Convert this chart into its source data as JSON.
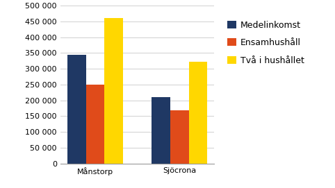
{
  "categories": [
    "Månstorp",
    "Sjöcrona"
  ],
  "series": [
    {
      "label": "Medelinkomst",
      "color": "#1F3864",
      "values": [
        345000,
        210000
      ]
    },
    {
      "label": "Ensamhushåll",
      "color": "#E04B1A",
      "values": [
        250000,
        168000
      ]
    },
    {
      "label": "Två i hushållet",
      "color": "#FFD700",
      "values": [
        460000,
        323000
      ]
    }
  ],
  "ylim": [
    0,
    500000
  ],
  "yticks": [
    0,
    50000,
    100000,
    150000,
    200000,
    250000,
    300000,
    350000,
    400000,
    450000,
    500000
  ],
  "ytick_labels": [
    "0",
    "50 000",
    "100 000",
    "150 000",
    "200 000",
    "250 000",
    "300 000",
    "350 000",
    "400 000",
    "450 000",
    "500 000"
  ],
  "background_color": "#FFFFFF",
  "grid_color": "#D0D0D0",
  "bar_width": 0.22,
  "legend_fontsize": 9,
  "tick_fontsize": 8,
  "figsize": [
    4.82,
    2.71
  ],
  "dpi": 100
}
